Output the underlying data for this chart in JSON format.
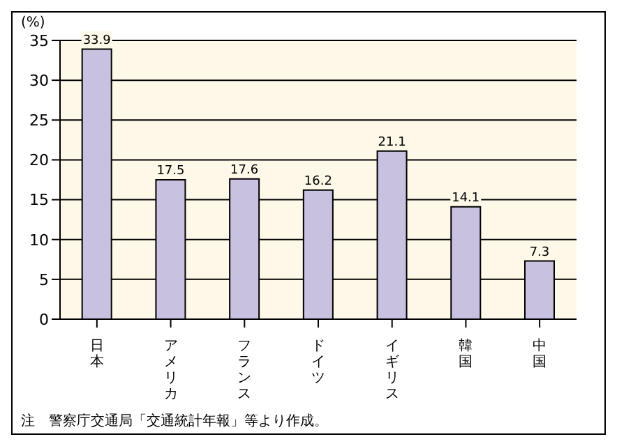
{
  "chart_data": {
    "type": "bar",
    "ylabel": "(%)",
    "categories": [
      "日本",
      "アメリカ",
      "フランス",
      "ドイツ",
      "イギリス",
      "韓国",
      "中国"
    ],
    "values": [
      33.9,
      17.5,
      17.6,
      16.2,
      21.1,
      14.1,
      7.3
    ],
    "color": "#c9c1e0",
    "ylim": [
      0,
      35
    ],
    "yticks": [
      0,
      5,
      10,
      15,
      20,
      25,
      30,
      35
    ],
    "grid": "y",
    "data_labels": true,
    "annotations": [
      "注　警察庁交通局「交通統計年報」等より作成。"
    ]
  }
}
